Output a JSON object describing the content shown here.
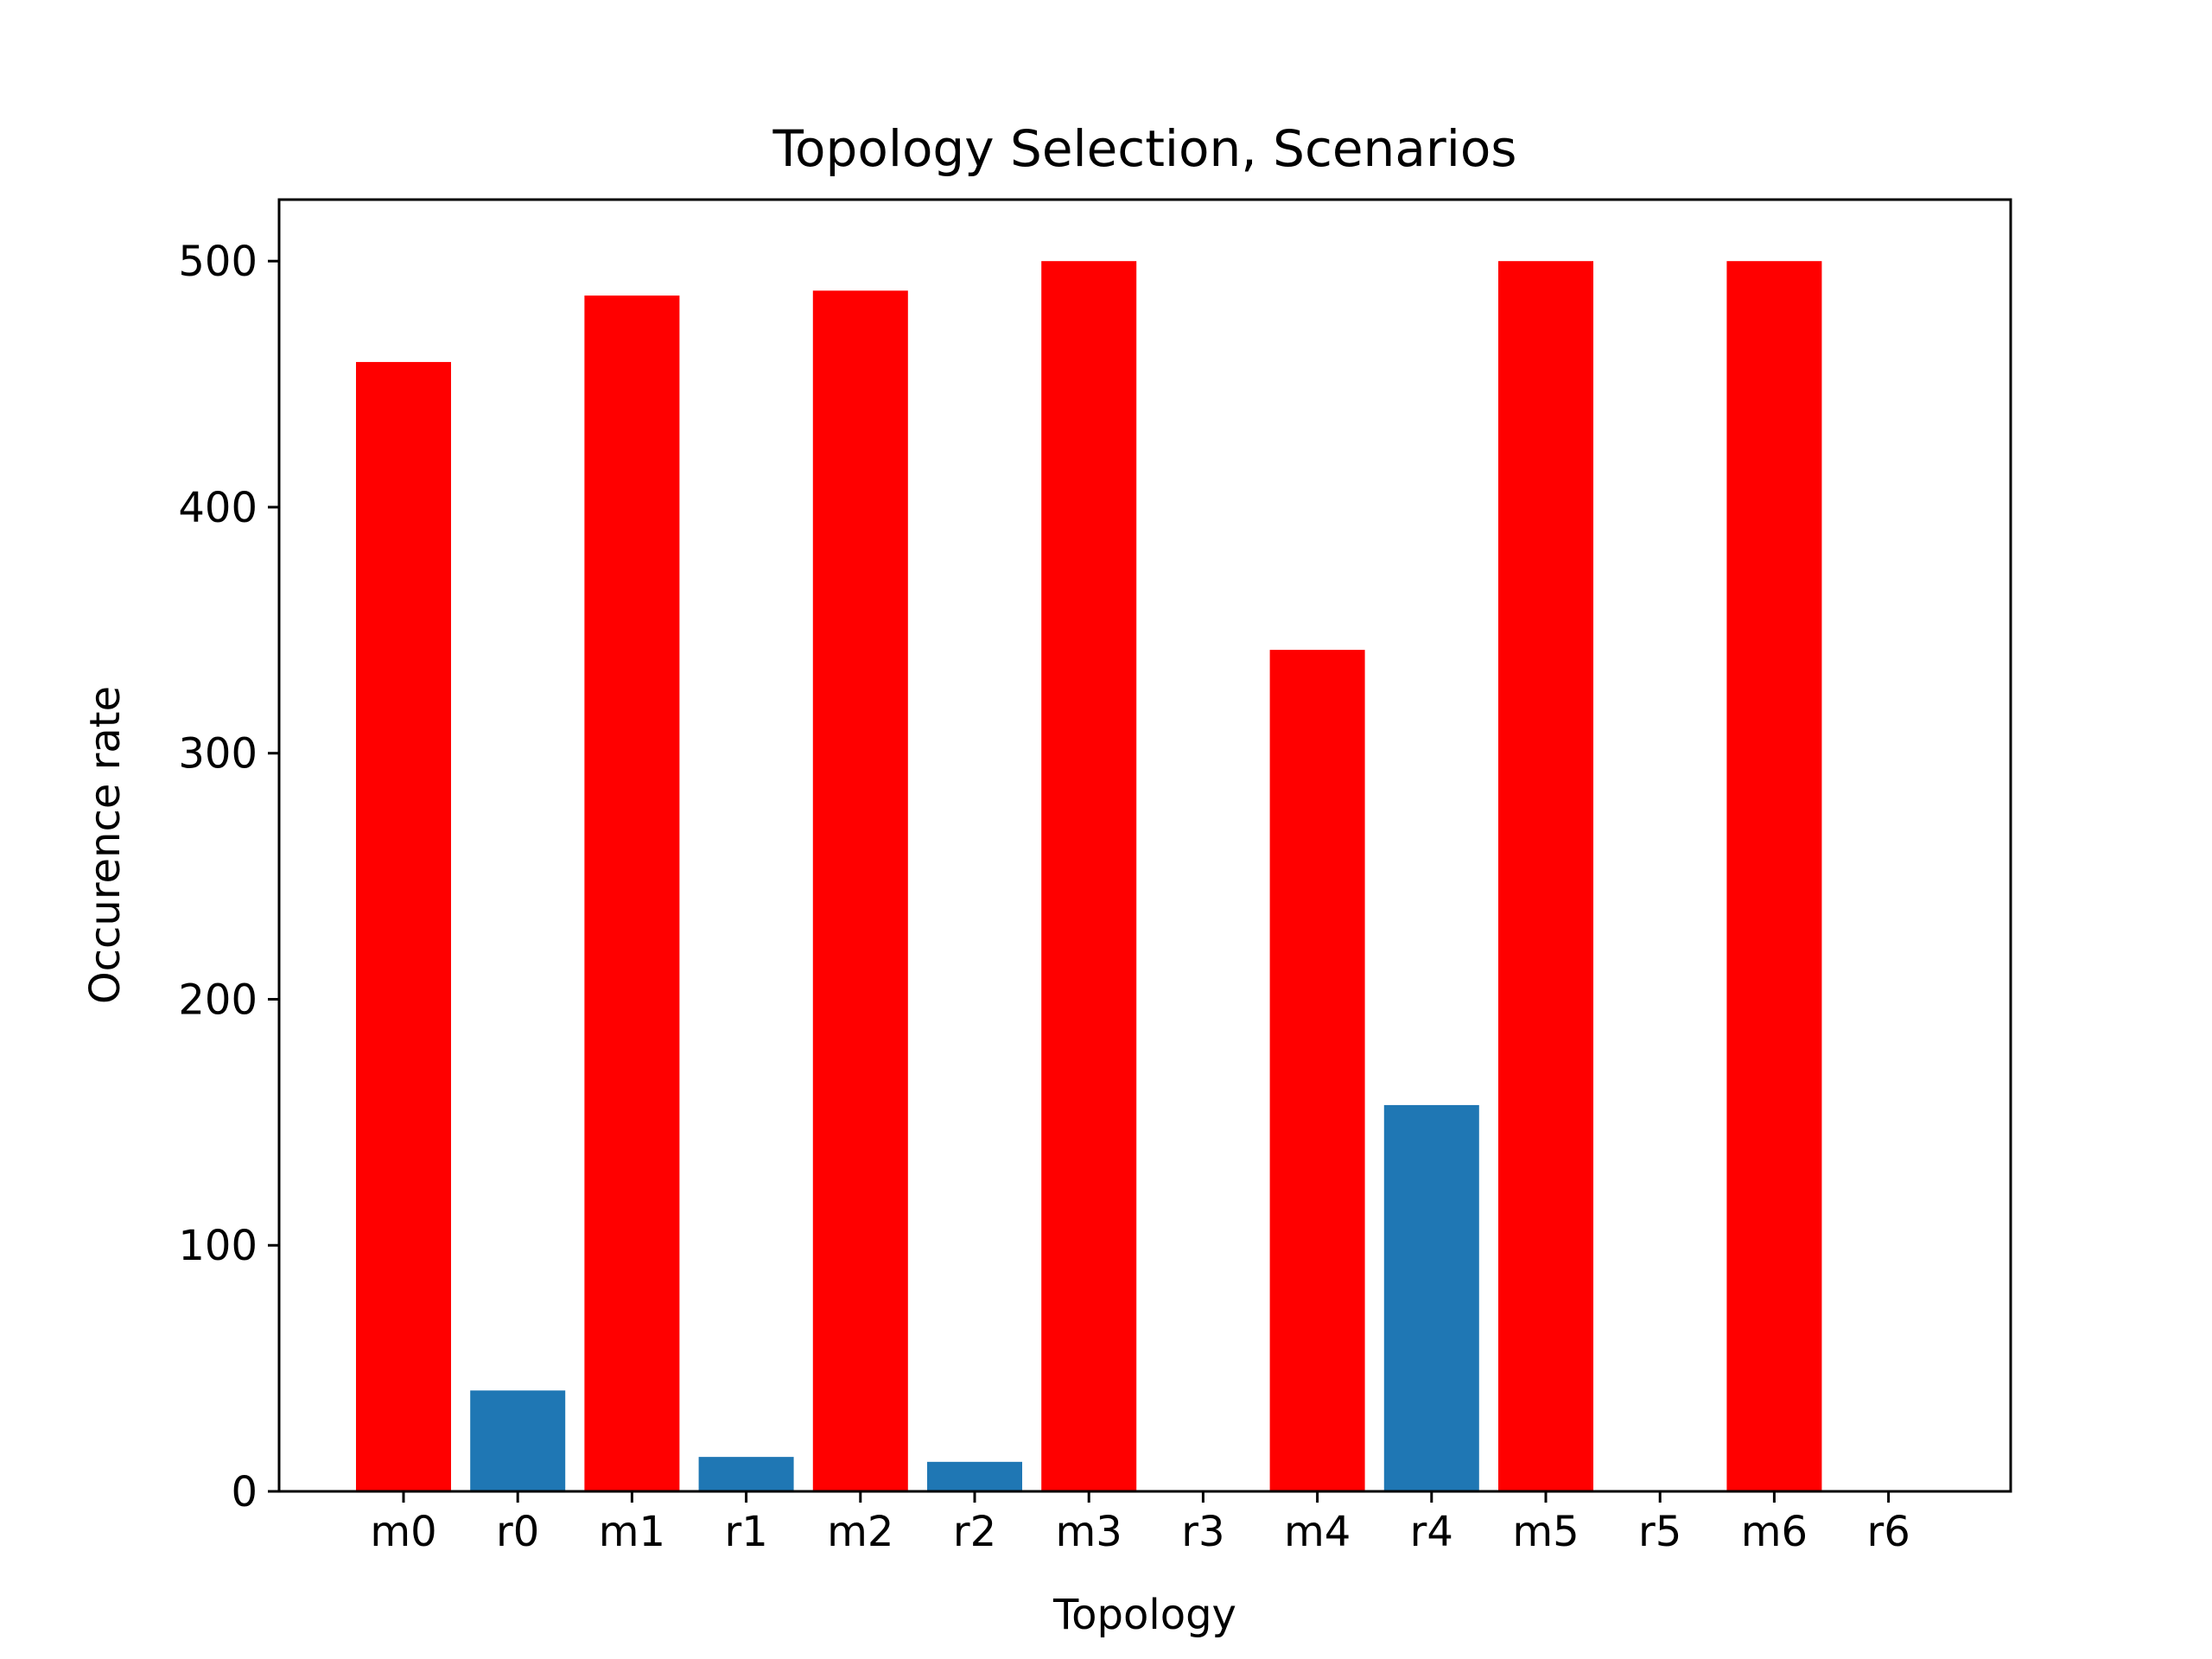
{
  "chart_data": {
    "type": "bar",
    "title": "Topology Selection, Scenarios",
    "xlabel": "Topology",
    "ylabel": "Occurence rate",
    "categories": [
      "m0",
      "r0",
      "m1",
      "r1",
      "m2",
      "r2",
      "m3",
      "r3",
      "m4",
      "r4",
      "m5",
      "r5",
      "m6",
      "r6"
    ],
    "values": [
      459,
      41,
      486,
      14,
      488,
      12,
      500,
      0,
      342,
      157,
      500,
      0,
      500,
      0
    ],
    "colors": [
      "#ff0000",
      "#1f77b4",
      "#ff0000",
      "#1f77b4",
      "#ff0000",
      "#1f77b4",
      "#ff0000",
      "#1f77b4",
      "#ff0000",
      "#1f77b4",
      "#ff0000",
      "#1f77b4",
      "#ff0000",
      "#1f77b4"
    ],
    "yticks": [
      0,
      100,
      200,
      300,
      400,
      500
    ],
    "ylim": [
      0,
      525
    ],
    "grid": false,
    "legend": "none"
  }
}
